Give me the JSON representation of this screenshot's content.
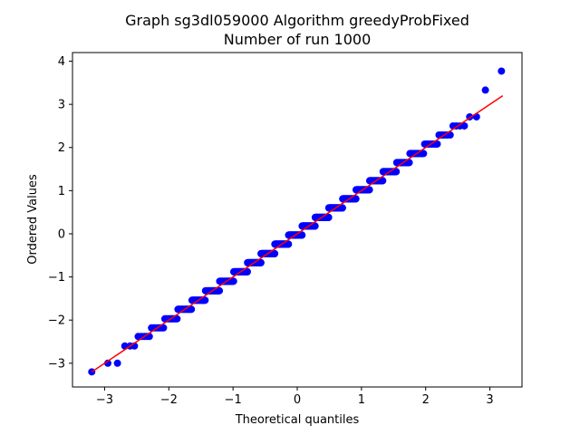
{
  "chart_data": {
    "type": "scatter",
    "title": "Graph sg3dl059000 Algorithm greedyProbFixed",
    "subtitle": "Number of run 1000",
    "xlabel": "Theoretical quantiles",
    "ylabel": "Ordered Values",
    "xlim": [
      -3.5,
      3.5
    ],
    "ylim": [
      -3.55,
      4.2
    ],
    "xticks": [
      -3,
      -2,
      -1,
      0,
      1,
      2,
      3
    ],
    "yticks": [
      -3,
      -2,
      -1,
      0,
      1,
      2,
      3,
      4
    ],
    "xtick_labels": [
      "−3",
      "−2",
      "−1",
      "0",
      "1",
      "2",
      "3"
    ],
    "ytick_labels": [
      "−3",
      "−2",
      "−1",
      "0",
      "1",
      "2",
      "3",
      "4"
    ],
    "grid": false,
    "marker_color": "#0000ff",
    "line_color": "#ff0000",
    "fit_line": {
      "x": [
        -3.2,
        3.2
      ],
      "y": [
        -3.2,
        3.2
      ]
    },
    "n_points": 1000,
    "extreme_points": [
      {
        "x": -3.2,
        "y": -3.2
      },
      {
        "x": -2.95,
        "y": -3.0
      },
      {
        "x": -2.8,
        "y": -3.0
      },
      {
        "x": 2.93,
        "y": 3.33
      },
      {
        "x": 3.18,
        "y": 3.77
      }
    ],
    "levels": [
      -2.8,
      -2.6,
      -2.38,
      -2.18,
      -1.97,
      -1.75,
      -1.54,
      -1.32,
      -1.1,
      -0.88,
      -0.67,
      -0.46,
      -0.24,
      -0.03,
      0.18,
      0.38,
      0.6,
      0.81,
      1.02,
      1.23,
      1.44,
      1.65,
      1.86,
      2.08,
      2.29,
      2.5,
      2.71
    ]
  }
}
